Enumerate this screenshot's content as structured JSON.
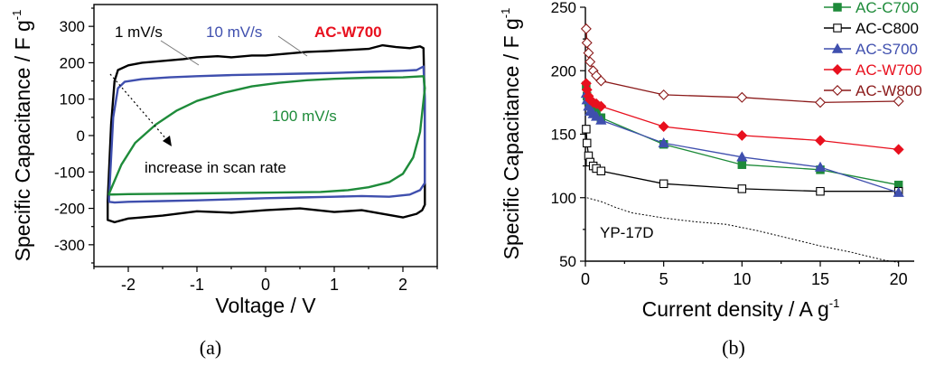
{
  "colors": {
    "black": "#000000",
    "blue": "#3f4fae",
    "green": "#1e8b3a",
    "red": "#e8101e",
    "darkred": "#8b1a1a",
    "sample_label": "#e8101e"
  },
  "chart_data": [
    {
      "type": "line",
      "panel_label": "(a)",
      "xlabel": "Voltage / V",
      "ylabel": "Specific Capacitance / F g",
      "ylabel_sup": "-1",
      "xlim": [
        -2.5,
        2.5
      ],
      "ylim": [
        -360,
        360
      ],
      "x_ticks": [
        -2,
        -1,
        0,
        1,
        2
      ],
      "y_ticks": [
        -300,
        -200,
        -100,
        0,
        100,
        200,
        300
      ],
      "sample_label": "AC-W700",
      "series": [
        {
          "name": "1 mV/s",
          "color": "#000000",
          "upper": [
            [
              -2.3,
              -180
            ],
            [
              -2.25,
              30
            ],
            [
              -2.2,
              150
            ],
            [
              -2.15,
              180
            ],
            [
              -2.0,
              193
            ],
            [
              -1.8,
              200
            ],
            [
              -1.5,
              205
            ],
            [
              -1.2,
              210
            ],
            [
              -1.0,
              215
            ],
            [
              -0.7,
              218
            ],
            [
              -0.5,
              215
            ],
            [
              -0.2,
              220
            ],
            [
              0.0,
              220
            ],
            [
              0.3,
              225
            ],
            [
              0.6,
              230
            ],
            [
              0.9,
              232
            ],
            [
              1.2,
              235
            ],
            [
              1.5,
              238
            ],
            [
              1.7,
              248
            ],
            [
              1.9,
              243
            ],
            [
              2.1,
              240
            ],
            [
              2.25,
              245
            ],
            [
              2.3,
              240
            ],
            [
              2.32,
              60
            ],
            [
              2.32,
              -190
            ]
          ],
          "lower": [
            [
              2.32,
              -190
            ],
            [
              2.28,
              -205
            ],
            [
              2.2,
              -215
            ],
            [
              2.0,
              -225
            ],
            [
              1.7,
              -215
            ],
            [
              1.4,
              -205
            ],
            [
              1.0,
              -210
            ],
            [
              0.5,
              -200
            ],
            [
              0.0,
              -205
            ],
            [
              -0.5,
              -212
            ],
            [
              -1.0,
              -208
            ],
            [
              -1.5,
              -220
            ],
            [
              -1.8,
              -225
            ],
            [
              -2.0,
              -228
            ],
            [
              -2.2,
              -238
            ],
            [
              -2.3,
              -232
            ],
            [
              -2.3,
              -180
            ]
          ]
        },
        {
          "name": "10 mV/s",
          "color": "#3f4fae",
          "upper": [
            [
              -2.28,
              -170
            ],
            [
              -2.22,
              50
            ],
            [
              -2.15,
              130
            ],
            [
              -2.05,
              148
            ],
            [
              -1.8,
              155
            ],
            [
              -1.4,
              160
            ],
            [
              -1.0,
              163
            ],
            [
              -0.5,
              166
            ],
            [
              0.0,
              168
            ],
            [
              0.5,
              170
            ],
            [
              1.0,
              172
            ],
            [
              1.5,
              175
            ],
            [
              2.0,
              178
            ],
            [
              2.2,
              180
            ],
            [
              2.3,
              190
            ],
            [
              2.32,
              100
            ],
            [
              2.32,
              -130
            ]
          ],
          "lower": [
            [
              2.32,
              -130
            ],
            [
              2.25,
              -150
            ],
            [
              2.1,
              -162
            ],
            [
              1.8,
              -168
            ],
            [
              1.4,
              -166
            ],
            [
              1.0,
              -168
            ],
            [
              0.5,
              -170
            ],
            [
              0.0,
              -172
            ],
            [
              -0.5,
              -175
            ],
            [
              -1.0,
              -178
            ],
            [
              -1.5,
              -180
            ],
            [
              -2.0,
              -182
            ],
            [
              -2.2,
              -184
            ],
            [
              -2.28,
              -182
            ],
            [
              -2.28,
              -170
            ]
          ]
        },
        {
          "name": "100 mV/s",
          "color": "#1e8b3a",
          "upper": [
            [
              -2.28,
              -160
            ],
            [
              -2.1,
              -80
            ],
            [
              -1.9,
              -20
            ],
            [
              -1.6,
              30
            ],
            [
              -1.3,
              68
            ],
            [
              -1.0,
              95
            ],
            [
              -0.6,
              118
            ],
            [
              -0.2,
              135
            ],
            [
              0.2,
              145
            ],
            [
              0.6,
              152
            ],
            [
              1.0,
              156
            ],
            [
              1.5,
              159
            ],
            [
              2.0,
              160
            ],
            [
              2.3,
              163
            ],
            [
              2.32,
              130
            ]
          ],
          "lower": [
            [
              2.32,
              130
            ],
            [
              2.25,
              10
            ],
            [
              2.15,
              -60
            ],
            [
              2.0,
              -105
            ],
            [
              1.8,
              -128
            ],
            [
              1.5,
              -142
            ],
            [
              1.2,
              -150
            ],
            [
              0.8,
              -155
            ],
            [
              0.4,
              -156
            ],
            [
              0.0,
              -157
            ],
            [
              -0.5,
              -158
            ],
            [
              -1.0,
              -159
            ],
            [
              -1.5,
              -160
            ],
            [
              -2.0,
              -161
            ],
            [
              -2.28,
              -162
            ],
            [
              -2.28,
              -160
            ]
          ]
        }
      ],
      "annotations": {
        "label_1mv": "1 mV/s",
        "label_10mv": "10 mV/s",
        "label_100mv": "100 mV/s",
        "arrow_text": "increase in scan rate"
      }
    },
    {
      "type": "line",
      "panel_label": "(b)",
      "xlabel": "Current density / A g",
      "xlabel_sup": "-1",
      "ylabel": "Specific Capacitance / F g",
      "ylabel_sup": "-1",
      "xlim": [
        0,
        21
      ],
      "ylim": [
        50,
        250
      ],
      "x_ticks": [
        0,
        5,
        10,
        15,
        20
      ],
      "y_ticks": [
        50,
        100,
        150,
        200,
        250
      ],
      "series": [
        {
          "name": "AC-C700",
          "color": "#1e8b3a",
          "marker": "square-filled",
          "points": [
            [
              0.05,
              188
            ],
            [
              0.1,
              180
            ],
            [
              0.2,
              176
            ],
            [
              0.3,
              173
            ],
            [
              0.5,
              170
            ],
            [
              0.7,
              167
            ],
            [
              1.0,
              163
            ],
            [
              5,
              142
            ],
            [
              10,
              126
            ],
            [
              15,
              122
            ],
            [
              20,
              110
            ]
          ]
        },
        {
          "name": "AC-C800",
          "color": "#000000",
          "marker": "square-open",
          "points": [
            [
              0.05,
              154
            ],
            [
              0.1,
              143
            ],
            [
              0.2,
              133
            ],
            [
              0.3,
              128
            ],
            [
              0.5,
              125
            ],
            [
              0.7,
              123
            ],
            [
              1.0,
              121
            ],
            [
              5,
              111
            ],
            [
              10,
              107
            ],
            [
              15,
              105
            ],
            [
              20,
              105
            ]
          ]
        },
        {
          "name": "AC-S700",
          "color": "#3f4fae",
          "marker": "triangle-filled",
          "points": [
            [
              0.05,
              182
            ],
            [
              0.1,
              177
            ],
            [
              0.2,
              172
            ],
            [
              0.3,
              168
            ],
            [
              0.5,
              166
            ],
            [
              0.7,
              164
            ],
            [
              1.0,
              161
            ],
            [
              5,
              143
            ],
            [
              10,
              132
            ],
            [
              15,
              124
            ],
            [
              20,
              104
            ]
          ]
        },
        {
          "name": "AC-W700",
          "color": "#e8101e",
          "marker": "diamond-filled",
          "points": [
            [
              0.05,
              190
            ],
            [
              0.1,
              185
            ],
            [
              0.2,
              180
            ],
            [
              0.3,
              177
            ],
            [
              0.5,
              175
            ],
            [
              0.7,
              174
            ],
            [
              1.0,
              172
            ],
            [
              5,
              156
            ],
            [
              10,
              149
            ],
            [
              15,
              145
            ],
            [
              20,
              138
            ]
          ]
        },
        {
          "name": "AC-W800",
          "color": "#8b1a1a",
          "marker": "diamond-open",
          "points": [
            [
              0.05,
              233
            ],
            [
              0.1,
              222
            ],
            [
              0.2,
              214
            ],
            [
              0.3,
              207
            ],
            [
              0.5,
              200
            ],
            [
              0.7,
              196
            ],
            [
              1.0,
              192
            ],
            [
              5,
              181
            ],
            [
              10,
              179
            ],
            [
              15,
              175
            ],
            [
              20,
              176
            ]
          ]
        },
        {
          "name": "YP-17D",
          "color": "#000000",
          "marker": "none",
          "dashed": true,
          "points": [
            [
              0.1,
              100
            ],
            [
              1,
              97
            ],
            [
              2,
              92
            ],
            [
              3,
              88
            ],
            [
              5,
              84
            ],
            [
              7,
              81
            ],
            [
              9,
              79
            ],
            [
              11,
              74
            ],
            [
              13,
              68
            ],
            [
              15,
              62
            ],
            [
              17,
              57
            ],
            [
              19,
              51
            ],
            [
              20,
              49
            ]
          ]
        }
      ]
    }
  ]
}
